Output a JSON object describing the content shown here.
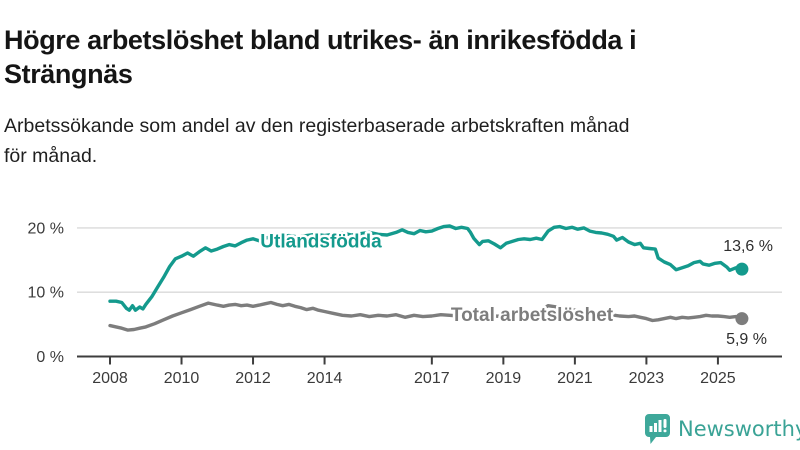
{
  "header": {
    "title_lines": [
      "Högre arbetslöshet bland utrikes- än inrikesfödda i",
      "Strängnäs"
    ],
    "subtitle_lines": [
      "Arbetssökande som andel av den registerbaserade arbetskraften månad",
      "för månad."
    ]
  },
  "chart_data": {
    "type": "line",
    "title": "Högre arbetslöshet bland utrikes- än inrikesfödda i Strängnäs",
    "subtitle": "Arbetssökande som andel av den registerbaserade arbetskraften månad för månad.",
    "xlabel": "",
    "ylabel": "",
    "xlim": [
      2007.1,
      2026.8
    ],
    "ylim": [
      0,
      22.5
    ],
    "grid": "horizontal",
    "x_ticks": [
      2008,
      2010,
      2012,
      2014,
      2017,
      2019,
      2021,
      2023,
      2025
    ],
    "x_tick_labels": [
      "2008",
      "2010",
      "2012",
      "2014",
      "2017",
      "2019",
      "2021",
      "2023",
      "2025"
    ],
    "y_ticks": [
      0,
      10,
      20
    ],
    "y_tick_labels": [
      "0 %",
      "10 %",
      "20 %"
    ],
    "colors": {
      "utlandsfodda": "#149a8d",
      "total": "#7d7d7d",
      "grid": "#dadada",
      "axis": "#3d3d3d"
    },
    "series": [
      {
        "id": "utlandsfodda",
        "name": "Utlandsfödda",
        "color": "#149a8d",
        "end_label": "13,6 %",
        "end_value": 13.6,
        "label_anchor": [
          2013.9,
          18.0
        ],
        "points": [
          [
            2008.0,
            8.6
          ],
          [
            2008.17,
            8.6
          ],
          [
            2008.33,
            8.4
          ],
          [
            2008.46,
            7.5
          ],
          [
            2008.54,
            7.2
          ],
          [
            2008.63,
            7.9
          ],
          [
            2008.71,
            7.2
          ],
          [
            2008.83,
            7.7
          ],
          [
            2008.92,
            7.4
          ],
          [
            2009.0,
            8.1
          ],
          [
            2009.17,
            9.3
          ],
          [
            2009.33,
            10.8
          ],
          [
            2009.5,
            12.3
          ],
          [
            2009.67,
            14.0
          ],
          [
            2009.83,
            15.2
          ],
          [
            2010.0,
            15.6
          ],
          [
            2010.17,
            16.1
          ],
          [
            2010.33,
            15.6
          ],
          [
            2010.5,
            16.3
          ],
          [
            2010.67,
            16.9
          ],
          [
            2010.83,
            16.4
          ],
          [
            2011.0,
            16.7
          ],
          [
            2011.17,
            17.1
          ],
          [
            2011.33,
            17.4
          ],
          [
            2011.5,
            17.2
          ],
          [
            2011.67,
            17.7
          ],
          [
            2011.83,
            18.1
          ],
          [
            2012.0,
            18.3
          ],
          [
            2012.17,
            18.0
          ],
          [
            2012.33,
            18.4
          ],
          [
            2012.5,
            18.6
          ],
          [
            2012.67,
            18.4
          ],
          [
            2012.83,
            18.7
          ],
          [
            2013.0,
            18.8
          ],
          [
            2013.25,
            18.6
          ],
          [
            2013.5,
            18.8
          ],
          [
            2013.75,
            19.0
          ],
          [
            2014.0,
            18.8
          ],
          [
            2014.25,
            19.0
          ],
          [
            2014.5,
            19.2
          ],
          [
            2014.75,
            18.9
          ],
          [
            2015.0,
            19.1
          ],
          [
            2015.25,
            19.3
          ],
          [
            2015.5,
            19.0
          ],
          [
            2015.75,
            18.9
          ],
          [
            2016.0,
            19.3
          ],
          [
            2016.17,
            19.7
          ],
          [
            2016.33,
            19.3
          ],
          [
            2016.5,
            19.1
          ],
          [
            2016.67,
            19.6
          ],
          [
            2016.83,
            19.4
          ],
          [
            2017.0,
            19.5
          ],
          [
            2017.17,
            19.9
          ],
          [
            2017.33,
            20.2
          ],
          [
            2017.5,
            20.3
          ],
          [
            2017.67,
            19.9
          ],
          [
            2017.83,
            20.1
          ],
          [
            2018.0,
            19.9
          ],
          [
            2018.08,
            19.3
          ],
          [
            2018.17,
            18.4
          ],
          [
            2018.33,
            17.4
          ],
          [
            2018.42,
            17.9
          ],
          [
            2018.58,
            18.0
          ],
          [
            2018.75,
            17.5
          ],
          [
            2018.92,
            16.9
          ],
          [
            2019.08,
            17.6
          ],
          [
            2019.25,
            17.9
          ],
          [
            2019.42,
            18.2
          ],
          [
            2019.58,
            18.3
          ],
          [
            2019.75,
            18.2
          ],
          [
            2019.92,
            18.4
          ],
          [
            2020.08,
            18.2
          ],
          [
            2020.25,
            19.5
          ],
          [
            2020.42,
            20.1
          ],
          [
            2020.58,
            20.2
          ],
          [
            2020.75,
            19.9
          ],
          [
            2020.92,
            20.1
          ],
          [
            2021.08,
            19.8
          ],
          [
            2021.25,
            20.0
          ],
          [
            2021.42,
            19.5
          ],
          [
            2021.58,
            19.3
          ],
          [
            2021.75,
            19.2
          ],
          [
            2021.92,
            19.0
          ],
          [
            2022.08,
            18.7
          ],
          [
            2022.17,
            18.1
          ],
          [
            2022.33,
            18.5
          ],
          [
            2022.5,
            17.8
          ],
          [
            2022.67,
            17.4
          ],
          [
            2022.83,
            17.6
          ],
          [
            2022.92,
            16.9
          ],
          [
            2023.08,
            16.8
          ],
          [
            2023.25,
            16.7
          ],
          [
            2023.33,
            15.3
          ],
          [
            2023.5,
            14.7
          ],
          [
            2023.67,
            14.3
          ],
          [
            2023.83,
            13.5
          ],
          [
            2024.0,
            13.8
          ],
          [
            2024.17,
            14.1
          ],
          [
            2024.33,
            14.6
          ],
          [
            2024.5,
            14.8
          ],
          [
            2024.58,
            14.4
          ],
          [
            2024.75,
            14.2
          ],
          [
            2024.92,
            14.5
          ],
          [
            2025.08,
            14.6
          ],
          [
            2025.25,
            13.9
          ],
          [
            2025.33,
            13.4
          ],
          [
            2025.5,
            13.8
          ],
          [
            2025.67,
            13.6
          ]
        ]
      },
      {
        "id": "total",
        "name": "Total arbetslöshet",
        "color": "#7d7d7d",
        "end_label": "5,9 %",
        "end_value": 5.9,
        "label_anchor": [
          2019.8,
          6.5
        ],
        "points": [
          [
            2008.0,
            4.8
          ],
          [
            2008.17,
            4.6
          ],
          [
            2008.33,
            4.4
          ],
          [
            2008.5,
            4.1
          ],
          [
            2008.67,
            4.2
          ],
          [
            2008.83,
            4.4
          ],
          [
            2009.0,
            4.6
          ],
          [
            2009.25,
            5.1
          ],
          [
            2009.5,
            5.7
          ],
          [
            2009.75,
            6.3
          ],
          [
            2010.0,
            6.8
          ],
          [
            2010.25,
            7.3
          ],
          [
            2010.5,
            7.8
          ],
          [
            2010.75,
            8.3
          ],
          [
            2011.0,
            8.0
          ],
          [
            2011.17,
            7.8
          ],
          [
            2011.33,
            8.0
          ],
          [
            2011.5,
            8.1
          ],
          [
            2011.67,
            7.9
          ],
          [
            2011.83,
            8.0
          ],
          [
            2012.0,
            7.8
          ],
          [
            2012.17,
            8.0
          ],
          [
            2012.33,
            8.2
          ],
          [
            2012.5,
            8.4
          ],
          [
            2012.67,
            8.1
          ],
          [
            2012.83,
            7.9
          ],
          [
            2013.0,
            8.1
          ],
          [
            2013.17,
            7.8
          ],
          [
            2013.33,
            7.6
          ],
          [
            2013.5,
            7.3
          ],
          [
            2013.67,
            7.5
          ],
          [
            2013.83,
            7.2
          ],
          [
            2014.0,
            7.0
          ],
          [
            2014.25,
            6.7
          ],
          [
            2014.5,
            6.4
          ],
          [
            2014.75,
            6.3
          ],
          [
            2015.0,
            6.5
          ],
          [
            2015.25,
            6.2
          ],
          [
            2015.5,
            6.4
          ],
          [
            2015.75,
            6.3
          ],
          [
            2016.0,
            6.5
          ],
          [
            2016.25,
            6.1
          ],
          [
            2016.5,
            6.4
          ],
          [
            2016.75,
            6.2
          ],
          [
            2017.0,
            6.3
          ],
          [
            2017.25,
            6.5
          ],
          [
            2017.5,
            6.4
          ],
          [
            2017.75,
            6.3
          ],
          [
            2018.0,
            6.4
          ],
          [
            2018.25,
            6.5
          ],
          [
            2018.5,
            6.4
          ],
          [
            2018.75,
            6.3
          ],
          [
            2019.0,
            6.2
          ],
          [
            2019.25,
            6.4
          ],
          [
            2019.5,
            6.5
          ],
          [
            2019.75,
            6.7
          ],
          [
            2020.0,
            7.0
          ],
          [
            2020.25,
            7.9
          ],
          [
            2020.5,
            7.7
          ],
          [
            2020.75,
            7.5
          ],
          [
            2021.0,
            7.2
          ],
          [
            2021.25,
            7.0
          ],
          [
            2021.5,
            6.8
          ],
          [
            2021.75,
            6.6
          ],
          [
            2022.0,
            6.5
          ],
          [
            2022.25,
            6.3
          ],
          [
            2022.5,
            6.2
          ],
          [
            2022.67,
            6.3
          ],
          [
            2022.83,
            6.1
          ],
          [
            2023.0,
            5.9
          ],
          [
            2023.17,
            5.6
          ],
          [
            2023.33,
            5.7
          ],
          [
            2023.5,
            5.9
          ],
          [
            2023.67,
            6.1
          ],
          [
            2023.83,
            5.9
          ],
          [
            2024.0,
            6.1
          ],
          [
            2024.17,
            6.0
          ],
          [
            2024.33,
            6.1
          ],
          [
            2024.5,
            6.2
          ],
          [
            2024.67,
            6.4
          ],
          [
            2024.83,
            6.3
          ],
          [
            2025.0,
            6.3
          ],
          [
            2025.17,
            6.2
          ],
          [
            2025.33,
            6.1
          ],
          [
            2025.5,
            6.2
          ],
          [
            2025.67,
            5.9
          ]
        ]
      }
    ]
  },
  "footer": {
    "brand": "Newsworthy"
  }
}
